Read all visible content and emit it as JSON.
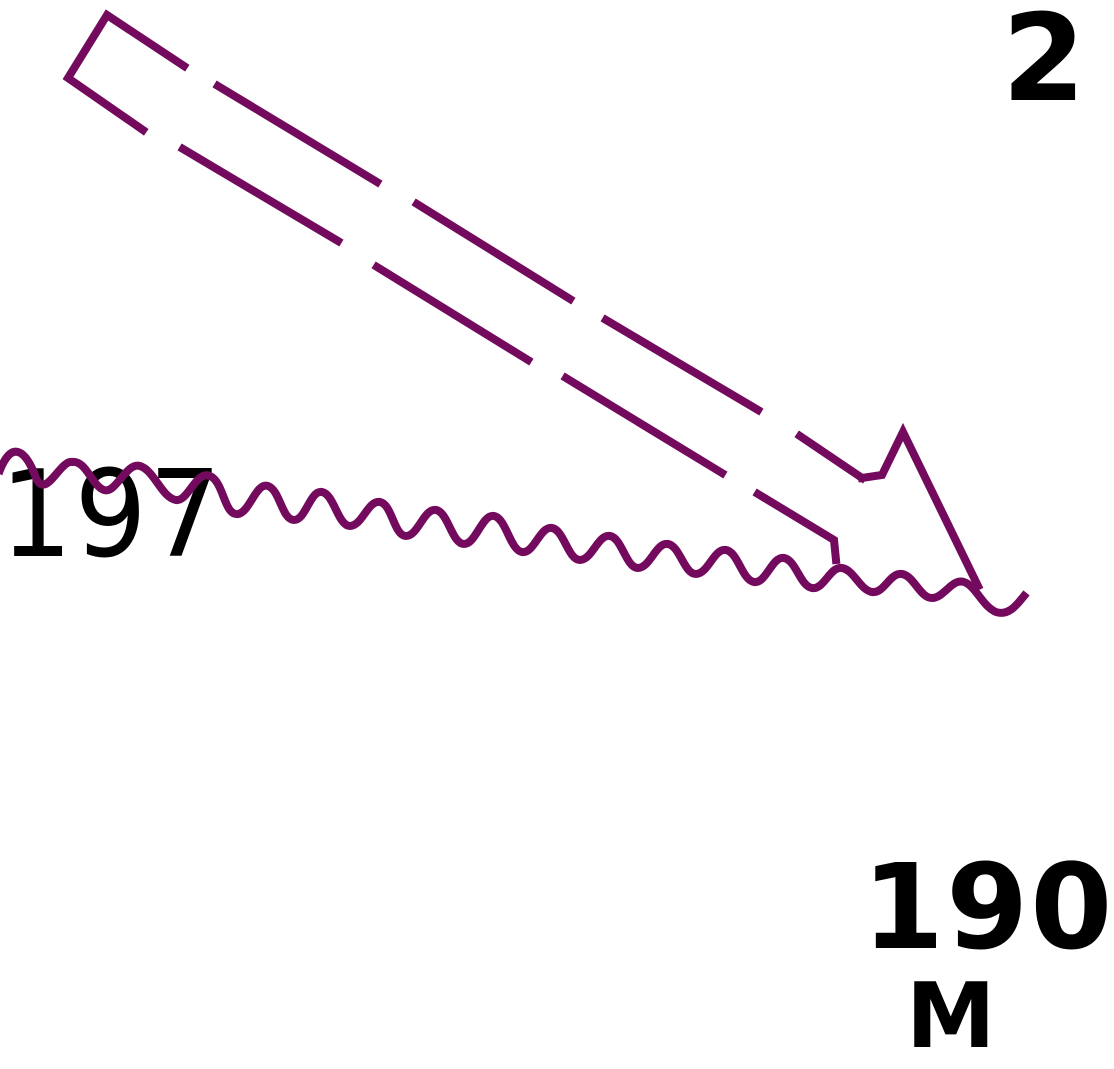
{
  "labels": {
    "left_number": "197",
    "bottom_right_number": "190",
    "top_right_fragment": "2",
    "bottom_fragment": "M"
  },
  "colors": {
    "annotation": "#740a5e",
    "text": "#000000",
    "background": "#ffffff"
  },
  "icons": {
    "arrow": "double-shaft-arrow-icon",
    "squiggle": "wavy-line"
  }
}
